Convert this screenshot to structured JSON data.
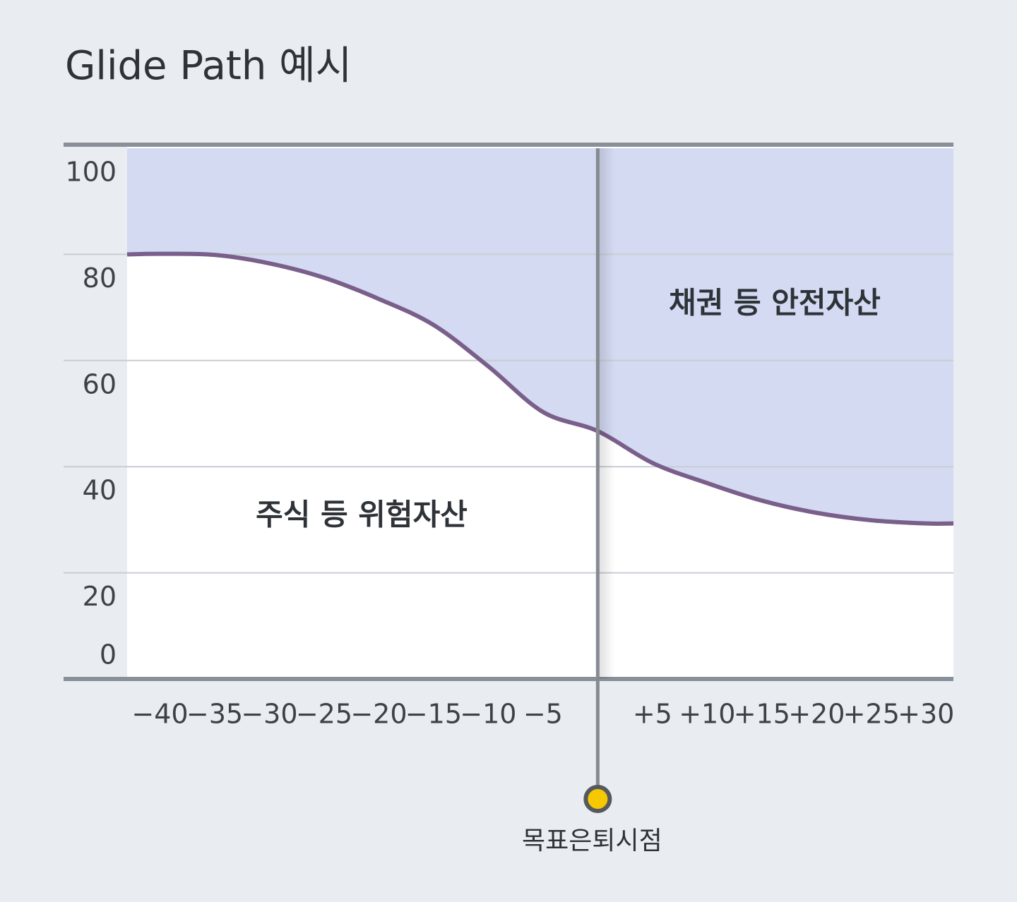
{
  "chart_data": {
    "type": "area",
    "title": "Glide Path 예시",
    "x": [
      -43,
      -40,
      -35,
      -30,
      -25,
      -20,
      -15,
      -10,
      -5,
      0,
      5,
      10,
      15,
      20,
      25,
      30,
      32.5
    ],
    "series": [
      {
        "name": "주식 등 위험자산",
        "color": "#7a5f8a",
        "values": [
          80,
          80.1,
          79.9,
          78.3,
          75.6,
          71.6,
          66.7,
          58.9,
          50.3,
          46.7,
          40.7,
          36.9,
          33.6,
          31.3,
          29.9,
          29.3,
          29.3
        ]
      }
    ],
    "upper_area": {
      "name": "채권 등 안전자산",
      "color": "#d3daf2"
    },
    "marker": {
      "x": 0,
      "label": "목표은퇴시점",
      "color": "#f5c800"
    },
    "xlim": [
      -43,
      32.5
    ],
    "ylim": [
      0,
      100
    ],
    "xticks": [
      {
        "value": -40,
        "label": "−40"
      },
      {
        "value": -35,
        "label": "−35"
      },
      {
        "value": -30,
        "label": "−30"
      },
      {
        "value": -25,
        "label": "−25"
      },
      {
        "value": -20,
        "label": "−20"
      },
      {
        "value": -15,
        "label": "−15"
      },
      {
        "value": -10,
        "label": "−10"
      },
      {
        "value": -5,
        "label": "−5"
      },
      {
        "value": 5,
        "label": "+5"
      },
      {
        "value": 10,
        "label": "+10"
      },
      {
        "value": 15,
        "label": "+15"
      },
      {
        "value": 20,
        "label": "+20"
      },
      {
        "value": 25,
        "label": "+25"
      },
      {
        "value": 30,
        "label": "+30"
      }
    ],
    "yticks": [
      0,
      20,
      40,
      60,
      80,
      100
    ],
    "grid": true
  }
}
